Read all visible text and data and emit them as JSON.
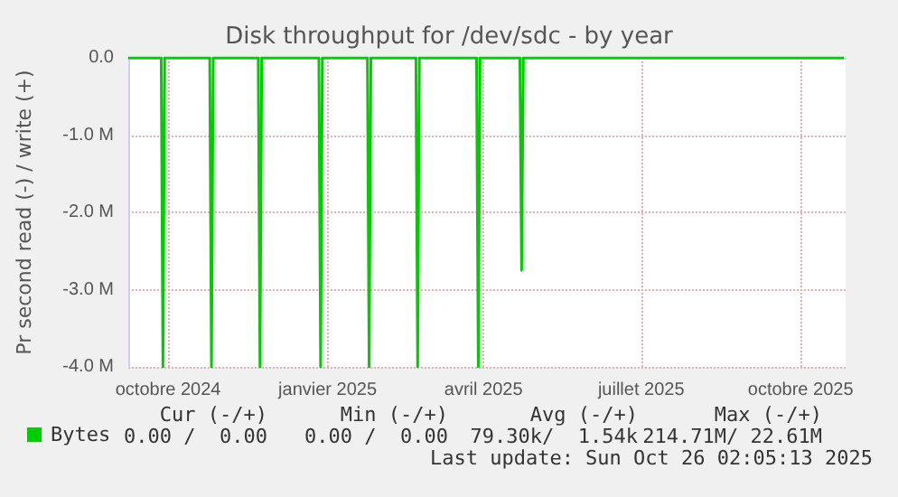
{
  "chart_data": {
    "type": "line",
    "title": "Disk throughput for /dev/sdc - by year",
    "ylabel": "Pr second read (-) / write (+)",
    "series": [
      {
        "name": "Bytes",
        "color": "#00cc00",
        "x": [
          "2024-09-08",
          "2024-09-27",
          "2024-09-28",
          "2024-09-29",
          "2024-10-25",
          "2024-10-26",
          "2024-10-27",
          "2024-11-22",
          "2024-11-23",
          "2024-11-24",
          "2024-12-27",
          "2024-12-28",
          "2024-12-29",
          "2025-01-24",
          "2025-01-25",
          "2025-01-26",
          "2025-02-21",
          "2025-02-22",
          "2025-02-23",
          "2025-03-28",
          "2025-03-29",
          "2025-03-30",
          "2025-04-22",
          "2025-04-23",
          "2025-04-24",
          "2025-10-26"
        ],
        "values": [
          0,
          0,
          -4000000,
          0,
          0,
          -4000000,
          0,
          0,
          -4000000,
          0,
          0,
          -4000000,
          0,
          0,
          -4000000,
          0,
          0,
          -4000000,
          0,
          0,
          -4000000,
          0,
          0,
          -2750000,
          0,
          0
        ]
      }
    ],
    "xlim": [
      "2024-09-08",
      "2025-10-27"
    ],
    "xticks": [
      {
        "value": "2024-10-01",
        "label": "octobre 2024"
      },
      {
        "value": "2025-01-01",
        "label": "janvier 2025"
      },
      {
        "value": "2025-04-01",
        "label": "avril 2025"
      },
      {
        "value": "2025-07-01",
        "label": "juillet 2025"
      },
      {
        "value": "2025-10-01",
        "label": "octobre 2025"
      }
    ],
    "ylim": [
      -4000000,
      0
    ],
    "yticks": [
      {
        "value": -4000000,
        "label": "-4.0 M"
      },
      {
        "value": -3000000,
        "label": "-3.0 M"
      },
      {
        "value": -2000000,
        "label": "-2.0 M"
      },
      {
        "value": -1000000,
        "label": "-1.0 M"
      },
      {
        "value": 0,
        "label": "0.0"
      }
    ],
    "grid": true,
    "legend": "bottom left",
    "marker": "none",
    "line_style": "solid",
    "annotations": [
      "Cur (-/+)",
      "Min (-/+)",
      "Avg (-/+)",
      "Max (-/+)",
      "0.00 /  0.00",
      "0.00 /  0.00",
      "79.30k/  1.54k",
      "214.71M/ 22.61M",
      "Last update: Sun Oct 26 02:05:13 2025"
    ]
  }
}
